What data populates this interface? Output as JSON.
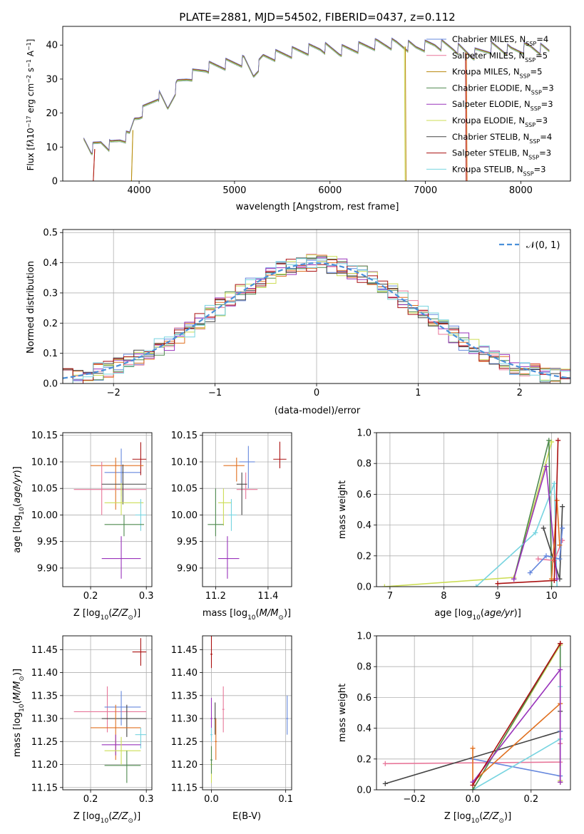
{
  "chart_data": [
    {
      "id": "spectrum",
      "type": "line",
      "title": "PLATE=2881, MJD=54502, FIBERID=0437, z=0.112",
      "xlabel": "wavelength [Angstrom, rest frame]",
      "ylabel": "Flux [f_λ 10^-17 erg cm^-2 s^-1 A^-1]",
      "xlim": [
        3200,
        8520
      ],
      "ylim": [
        0,
        45.5
      ],
      "xticks": [
        4000,
        5000,
        6000,
        7000,
        8000
      ],
      "yticks": [
        0,
        10,
        20,
        30,
        40
      ],
      "grid": false,
      "legend_position": "top-right",
      "legend": [
        {
          "label": "Chabrier MILES, N_SSP=4",
          "color": "#6688dd"
        },
        {
          "label": "Salpeter MILES, N_SSP=5",
          "color": "#e8779a"
        },
        {
          "label": "Kroupa MILES, N_SSP=5",
          "color": "#b8860b"
        },
        {
          "label": "Chabrier ELODIE, N_SSP=3",
          "color": "#4f8a4f"
        },
        {
          "label": "Salpeter ELODIE, N_SSP=3",
          "color": "#9933bb"
        },
        {
          "label": "Kroupa ELODIE, N_SSP=3",
          "color": "#ccdd55"
        },
        {
          "label": "Chabrier STELIB, N_SSP=4",
          "color": "#444444"
        },
        {
          "label": "Salpeter STELIB, N_SSP=3",
          "color": "#aa1111"
        },
        {
          "label": "Kroupa STELIB, N_SSP=3",
          "color": "#77d4e0"
        }
      ],
      "spectrum_shape": {
        "x": [
          3420,
          3500,
          3600,
          3700,
          3800,
          3900,
          3950,
          4000,
          4100,
          4200,
          4300,
          4400,
          4500,
          4700,
          4900,
          5100,
          5200,
          5300,
          5500,
          5700,
          5900,
          6100,
          6300,
          6500,
          6700,
          6900,
          7100,
          7300,
          7500,
          7700,
          7900,
          8100,
          8300
        ],
        "y": [
          12,
          9,
          11,
          10,
          12,
          13,
          18,
          19,
          22,
          25,
          21,
          28,
          30,
          33,
          34,
          35,
          31,
          36,
          37,
          38,
          39,
          38,
          39,
          40,
          40,
          39,
          40,
          39,
          37,
          39,
          38,
          39,
          38
        ]
      },
      "model_cutoffs": [
        {
          "color": "#e07020",
          "x_start": 3520,
          "x_end": 7430
        },
        {
          "color": "#ccdd55",
          "x_start": 3920,
          "x_end": 6780
        },
        {
          "color": "#b8860b",
          "x_start": 3920,
          "x_end": 6790
        },
        {
          "color": "#aa1111",
          "x_start": 3520,
          "x_end": 7420
        },
        {
          "color": "#888888",
          "x_start": 3420,
          "x_end": 8300
        }
      ]
    },
    {
      "id": "residuals",
      "type": "line",
      "xlabel": "(data-model)/error",
      "ylabel": "Normed distribution",
      "xlim": [
        -2.5,
        2.5
      ],
      "ylim": [
        0,
        0.51
      ],
      "xticks": [
        -2,
        -1,
        0,
        1,
        2
      ],
      "yticks": [
        0.0,
        0.1,
        0.2,
        0.3,
        0.4,
        0.5
      ],
      "grid": true,
      "legend_position": "top-right",
      "legend": [
        {
          "label": "𝒩(0, 1)",
          "color": "#4a90d9"
        }
      ],
      "normal_curve": {
        "mean": 0,
        "sigma": 1
      }
    },
    {
      "id": "age_vs_Z",
      "type": "scatter",
      "xlabel": "Z [log10(Z/Z⊙)]",
      "ylabel": "age  [log10(age/yr)]",
      "xlim": [
        0.15,
        0.31
      ],
      "ylim": [
        9.865,
        10.155
      ],
      "xticks": [
        0.2,
        0.3
      ],
      "yticks": [
        9.9,
        9.95,
        10.0,
        10.05,
        10.1,
        10.15
      ],
      "points": [
        {
          "color": "#6688dd",
          "x": 0.255,
          "y": 10.08,
          "xerr": [
            0.225,
            0.29
          ],
          "yerr": [
            10.035,
            10.125
          ]
        },
        {
          "color": "#aa1111",
          "x": 0.29,
          "y": 10.105,
          "xerr": [
            0.275,
            0.3
          ],
          "yerr": [
            10.075,
            10.137
          ]
        },
        {
          "color": "#e07020",
          "x": 0.245,
          "y": 10.093,
          "xerr": [
            0.2,
            0.295
          ],
          "yerr": [
            10.01,
            10.108
          ]
        },
        {
          "color": "#e8779a",
          "x": 0.22,
          "y": 10.048,
          "xerr": [
            0.17,
            0.3
          ],
          "yerr": [
            10.0,
            10.1
          ]
        },
        {
          "color": "#444444",
          "x": 0.258,
          "y": 10.058,
          "xerr": [
            0.22,
            0.3
          ],
          "yerr": [
            10.02,
            10.095
          ]
        },
        {
          "color": "#ccdd55",
          "x": 0.255,
          "y": 10.023,
          "xerr": [
            0.225,
            0.295
          ],
          "yerr": [
            10.0,
            10.06
          ]
        },
        {
          "color": "#77d4e0",
          "x": 0.29,
          "y": 10.0,
          "xerr": [
            0.28,
            0.3
          ],
          "yerr": [
            9.97,
            10.03
          ]
        },
        {
          "color": "#4f8a4f",
          "x": 0.26,
          "y": 9.982,
          "xerr": [
            0.225,
            0.296
          ],
          "yerr": [
            9.96,
            10.0
          ]
        },
        {
          "color": "#9933bb",
          "x": 0.255,
          "y": 9.918,
          "xerr": [
            0.22,
            0.29
          ],
          "yerr": [
            9.88,
            9.96
          ]
        }
      ]
    },
    {
      "id": "age_vs_mass",
      "type": "scatter",
      "xlabel": "mass [log10(M/M⊙)]",
      "ylabel": "",
      "xlim": [
        11.15,
        11.49
      ],
      "ylim": [
        9.865,
        10.155
      ],
      "xticks": [
        11.2,
        11.4
      ],
      "yticks": [
        9.9,
        9.95,
        10.0,
        10.05,
        10.1,
        10.15
      ],
      "points": [
        {
          "color": "#6688dd",
          "x": 11.325,
          "y": 10.1,
          "xerr": [
            11.29,
            11.35
          ],
          "yerr": [
            10.05,
            10.13
          ]
        },
        {
          "color": "#aa1111",
          "x": 11.445,
          "y": 10.105,
          "xerr": [
            11.42,
            11.47
          ],
          "yerr": [
            10.088,
            10.138
          ]
        },
        {
          "color": "#e07020",
          "x": 11.28,
          "y": 10.093,
          "xerr": [
            11.23,
            11.31
          ],
          "yerr": [
            10.063,
            10.108
          ]
        },
        {
          "color": "#e8779a",
          "x": 11.315,
          "y": 10.048,
          "xerr": [
            11.28,
            11.36
          ],
          "yerr": [
            10.03,
            10.08
          ]
        },
        {
          "color": "#444444",
          "x": 11.3,
          "y": 10.058,
          "xerr": [
            11.28,
            11.32
          ],
          "yerr": [
            10.0,
            10.08
          ]
        },
        {
          "color": "#ccdd55",
          "x": 11.23,
          "y": 10.023,
          "xerr": [
            11.21,
            11.26
          ],
          "yerr": [
            9.98,
            10.05
          ]
        },
        {
          "color": "#77d4e0",
          "x": 11.26,
          "y": 10.0,
          "xerr": [
            11.25,
            11.28
          ],
          "yerr": [
            9.97,
            10.03
          ]
        },
        {
          "color": "#4f8a4f",
          "x": 11.2,
          "y": 9.982,
          "xerr": [
            11.17,
            11.23
          ],
          "yerr": [
            9.96,
            10.05
          ]
        },
        {
          "color": "#9933bb",
          "x": 11.245,
          "y": 9.918,
          "xerr": [
            11.21,
            11.29
          ],
          "yerr": [
            9.88,
            9.96
          ]
        }
      ]
    },
    {
      "id": "mass_weight_vs_age",
      "type": "line",
      "xlabel": "age  [log10(age/yr)]",
      "ylabel": "mass weight",
      "xlim": [
        6.75,
        10.35
      ],
      "ylim": [
        0,
        1.0
      ],
      "xticks": [
        7,
        8,
        9,
        10
      ],
      "yticks": [
        0.0,
        0.2,
        0.4,
        0.6,
        0.8,
        1.0
      ],
      "grid": true,
      "series": [
        {
          "color": "#ccdd55",
          "x": [
            6.9,
            9.3,
            10.0
          ],
          "y": [
            0.0,
            0.06,
            0.94
          ]
        },
        {
          "color": "#4f8a4f",
          "x": [
            9.3,
            9.95,
            10.0
          ],
          "y": [
            0.05,
            0.95,
            0.0
          ]
        },
        {
          "color": "#77d4e0",
          "x": [
            8.6,
            9.7,
            10.05,
            10.1
          ],
          "y": [
            0.0,
            0.35,
            0.67,
            0.0
          ]
        },
        {
          "color": "#444444",
          "x": [
            9.85,
            10.15,
            10.2
          ],
          "y": [
            0.38,
            0.05,
            0.52
          ]
        },
        {
          "color": "#e8779a",
          "x": [
            9.75,
            10.05,
            10.2
          ],
          "y": [
            0.18,
            0.17,
            0.3
          ]
        },
        {
          "color": "#6688dd",
          "x": [
            9.6,
            9.9,
            10.15,
            10.2
          ],
          "y": [
            0.09,
            0.2,
            0.18,
            0.38
          ]
        },
        {
          "color": "#9933bb",
          "x": [
            9.3,
            9.9,
            10.1
          ],
          "y": [
            0.05,
            0.78,
            0.05
          ]
        },
        {
          "color": "#e07020",
          "x": [
            10.0,
            10.1,
            10.15
          ],
          "y": [
            0.05,
            0.56,
            0.27
          ]
        },
        {
          "color": "#aa1111",
          "x": [
            9.0,
            10.05,
            10.12
          ],
          "y": [
            0.02,
            0.04,
            0.95
          ]
        }
      ]
    },
    {
      "id": "mass_vs_Z",
      "type": "scatter",
      "xlabel": "Z [log10(Z/Z⊙)]",
      "ylabel": "mass [log10(M/M⊙)]",
      "xlim": [
        0.15,
        0.31
      ],
      "ylim": [
        11.145,
        11.48
      ],
      "xticks": [
        0.2,
        0.3
      ],
      "yticks": [
        11.15,
        11.2,
        11.25,
        11.3,
        11.35,
        11.4,
        11.45
      ],
      "points": [
        {
          "color": "#aa1111",
          "x": 0.29,
          "y": 11.445,
          "xerr": [
            0.275,
            0.3
          ],
          "yerr": [
            11.415,
            11.475
          ]
        },
        {
          "color": "#e8779a",
          "x": 0.23,
          "y": 11.315,
          "xerr": [
            0.17,
            0.3
          ],
          "yerr": [
            11.27,
            11.37
          ]
        },
        {
          "color": "#6688dd",
          "x": 0.255,
          "y": 11.325,
          "xerr": [
            0.225,
            0.29
          ],
          "yerr": [
            11.285,
            11.36
          ]
        },
        {
          "color": "#444444",
          "x": 0.265,
          "y": 11.3,
          "xerr": [
            0.22,
            0.3
          ],
          "yerr": [
            11.26,
            11.33
          ]
        },
        {
          "color": "#e07020",
          "x": 0.245,
          "y": 11.28,
          "xerr": [
            0.2,
            0.29
          ],
          "yerr": [
            11.21,
            11.33
          ]
        },
        {
          "color": "#77d4e0",
          "x": 0.29,
          "y": 11.265,
          "xerr": [
            0.28,
            0.3
          ],
          "yerr": [
            11.235,
            11.28
          ]
        },
        {
          "color": "#9933bb",
          "x": 0.245,
          "y": 11.243,
          "xerr": [
            0.22,
            0.29
          ],
          "yerr": [
            11.22,
            11.265
          ]
        },
        {
          "color": "#ccdd55",
          "x": 0.255,
          "y": 11.23,
          "xerr": [
            0.225,
            0.29
          ],
          "yerr": [
            11.2,
            11.26
          ]
        },
        {
          "color": "#4f8a4f",
          "x": 0.265,
          "y": 11.198,
          "xerr": [
            0.225,
            0.29
          ],
          "yerr": [
            11.16,
            11.23
          ]
        }
      ]
    },
    {
      "id": "mass_vs_ebv",
      "type": "scatter",
      "xlabel": "E(B-V)",
      "ylabel": "",
      "xlim": [
        -0.012,
        0.108
      ],
      "ylim": [
        11.145,
        11.48
      ],
      "xticks": [
        0.0,
        0.1
      ],
      "yticks": [
        11.15,
        11.2,
        11.25,
        11.3,
        11.35,
        11.4,
        11.45
      ],
      "points": [
        {
          "color": "#aa1111",
          "x": 0.0,
          "y": 11.44,
          "yerr": [
            11.41,
            11.48
          ]
        },
        {
          "color": "#e8779a",
          "x": 0.016,
          "y": 11.32,
          "yerr": [
            11.27,
            11.37
          ]
        },
        {
          "color": "#6688dd",
          "x": 0.102,
          "y": 11.3,
          "yerr": [
            11.265,
            11.35
          ]
        },
        {
          "color": "#444444",
          "x": 0.005,
          "y": 11.3,
          "yerr": [
            11.265,
            11.335
          ]
        },
        {
          "color": "#9933bb",
          "x": 0.0,
          "y": 11.3,
          "yerr": [
            11.26,
            11.345
          ]
        },
        {
          "color": "#e07020",
          "x": 0.006,
          "y": 11.25,
          "yerr": [
            11.21,
            11.3
          ]
        },
        {
          "color": "#77d4e0",
          "x": 0.0,
          "y": 11.265,
          "yerr": [
            11.25,
            11.28
          ]
        },
        {
          "color": "#ccdd55",
          "x": 0.0,
          "y": 11.2,
          "yerr": [
            11.16,
            11.24
          ]
        },
        {
          "color": "#4f8a4f",
          "x": 0.0,
          "y": 11.21,
          "yerr": [
            11.18,
            11.24
          ]
        }
      ]
    },
    {
      "id": "mass_weight_vs_Z",
      "type": "line",
      "xlabel": "Z [log10(Z/Z⊙)]",
      "ylabel": "mass weight",
      "xlim": [
        -0.33,
        0.335
      ],
      "ylim": [
        0,
        1.0
      ],
      "xticks": [
        -0.2,
        0.0,
        0.2
      ],
      "yticks": [
        0.0,
        0.2,
        0.4,
        0.6,
        0.8,
        1.0
      ],
      "grid": true,
      "series": [
        {
          "color": "#e8779a",
          "x": [
            -0.3,
            0.3,
            0.3
          ],
          "y": [
            0.17,
            0.18,
            0.3
          ]
        },
        {
          "color": "#444444",
          "x": [
            -0.3,
            0.3,
            0.3
          ],
          "y": [
            0.04,
            0.38,
            0.51
          ]
        },
        {
          "color": "#6688dd",
          "x": [
            0.0,
            0.3,
            0.3
          ],
          "y": [
            0.2,
            0.09,
            0.38
          ]
        },
        {
          "color": "#77d4e0",
          "x": [
            0.0,
            0.3,
            0.3
          ],
          "y": [
            0.0,
            0.33,
            0.67
          ]
        },
        {
          "color": "#ccdd55",
          "x": [
            0.0,
            0.3,
            0.3
          ],
          "y": [
            0.0,
            0.94,
            0.06
          ]
        },
        {
          "color": "#4f8a4f",
          "x": [
            0.0,
            0.3,
            0.3
          ],
          "y": [
            0.0,
            0.95,
            0.05
          ]
        },
        {
          "color": "#e07020",
          "x": [
            0.0,
            0.0,
            0.3,
            0.3
          ],
          "y": [
            0.27,
            0.05,
            0.56,
            0.05
          ]
        },
        {
          "color": "#9933bb",
          "x": [
            0.0,
            0.3,
            0.3
          ],
          "y": [
            0.05,
            0.78,
            0.05
          ]
        },
        {
          "color": "#aa1111",
          "x": [
            0.0,
            0.3,
            0.3
          ],
          "y": [
            0.03,
            0.95,
            0.95
          ]
        }
      ]
    }
  ],
  "histogram_colors": [
    "#6688dd",
    "#e8779a",
    "#e07020",
    "#4f8a4f",
    "#9933bb",
    "#ccdd55",
    "#444444",
    "#aa1111",
    "#77d4e0"
  ]
}
